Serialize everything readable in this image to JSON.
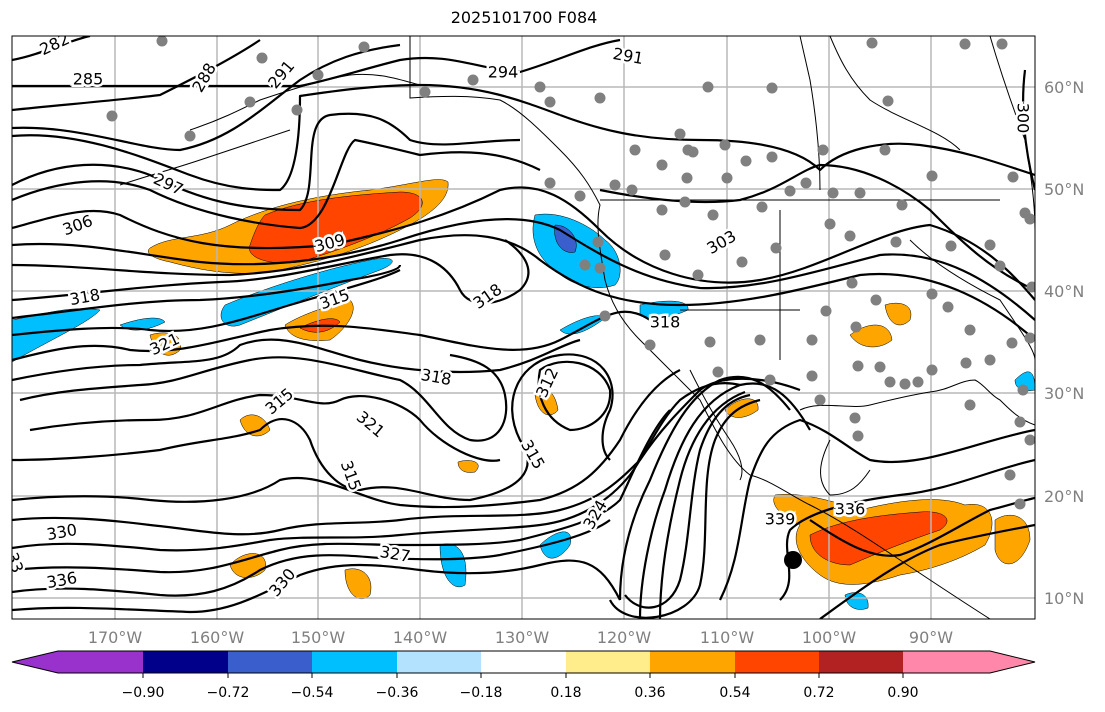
{
  "title": "2025101700 F084",
  "map": {
    "lon_labels": [
      "170°W",
      "160°W",
      "150°W",
      "140°W",
      "130°W",
      "120°W",
      "110°W",
      "100°W",
      "90°W"
    ],
    "lat_labels": [
      "60°N",
      "50°N",
      "40°N",
      "30°N",
      "20°N",
      "10°N"
    ],
    "contour_labels": [
      "282",
      "285",
      "288",
      "291",
      "294",
      "291",
      "300",
      "297",
      "306",
      "309",
      "318",
      "315",
      "318",
      "303",
      "318",
      "321",
      "318",
      "312",
      "315",
      "321",
      "315",
      "315",
      "330",
      "336",
      "327",
      "330",
      "324",
      "339",
      "336",
      "33"
    ]
  },
  "colorbar": {
    "ticks": [
      "−0.90",
      "−0.72",
      "−0.54",
      "−0.36",
      "−0.18",
      "0.18",
      "0.36",
      "0.54",
      "0.72",
      "0.90"
    ],
    "colors": [
      "#9932cc",
      "#00008b",
      "#3a5fcd",
      "#00bfff",
      "#b2e2ff",
      "#ffffff",
      "#ffec8b",
      "#ffa500",
      "#ff4500",
      "#b22222",
      "#ff88aa"
    ],
    "extend": "both"
  }
}
